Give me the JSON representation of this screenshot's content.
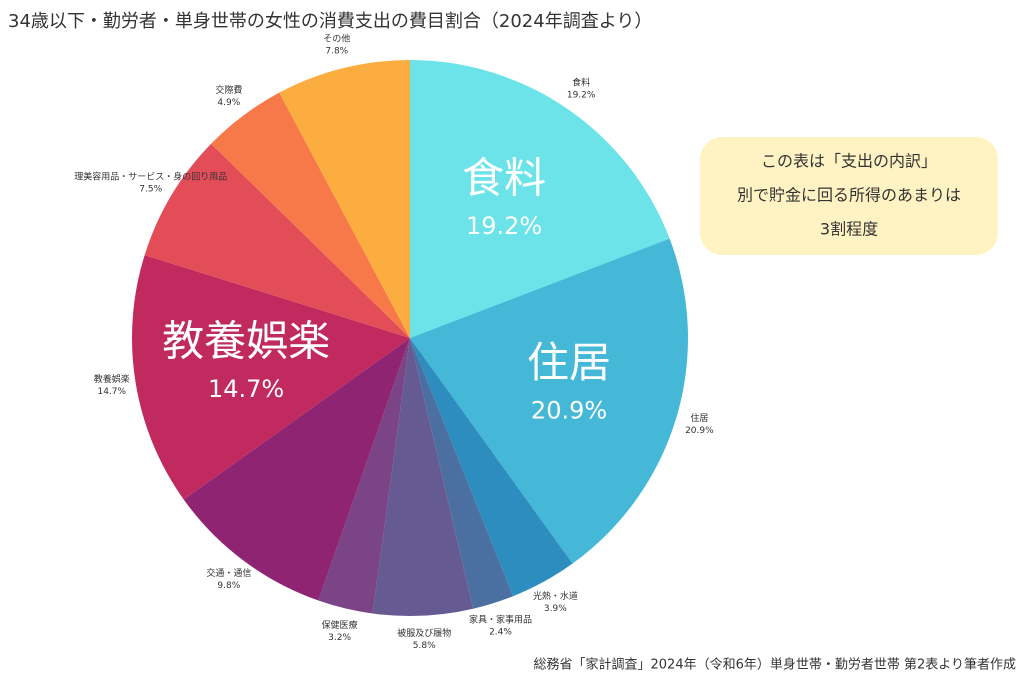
{
  "chart_data": {
    "type": "pie",
    "title": "34歳以下・勤労者・単身世帯の女性の消費支出の費目割合（2024年調査より）",
    "categories": [
      "食料",
      "住居",
      "光熱・水道",
      "家具・家事用品",
      "被服及び履物",
      "保健医療",
      "交通・通信",
      "教養娯楽",
      "理美容用品・サービス・身の回り用品",
      "交際費",
      "その他"
    ],
    "values": [
      19.2,
      20.9,
      3.9,
      2.4,
      5.8,
      3.2,
      9.8,
      14.7,
      7.5,
      4.9,
      7.8
    ],
    "value_labels": [
      "19.2%",
      "20.9%",
      "3.9%",
      "2.4%",
      "5.8%",
      "3.2%",
      "9.8%",
      "14.7%",
      "7.5%",
      "4.9%",
      "7.8%"
    ],
    "colors": [
      "#6be3e8",
      "#45b8d8",
      "#2e8dbf",
      "#4a6fa0",
      "#655a92",
      "#7a4487",
      "#8f2473",
      "#c02a5e",
      "#e34d58",
      "#f77848",
      "#fbae3f"
    ],
    "annotation": [
      "この表は「支出の内訳」",
      "別で貯金に回る所得のあまりは",
      "3割程度"
    ],
    "source": "総務省「家計調査」2024年（令和6年）単身世帯・勤労者世帯 第2表より筆者作成"
  }
}
